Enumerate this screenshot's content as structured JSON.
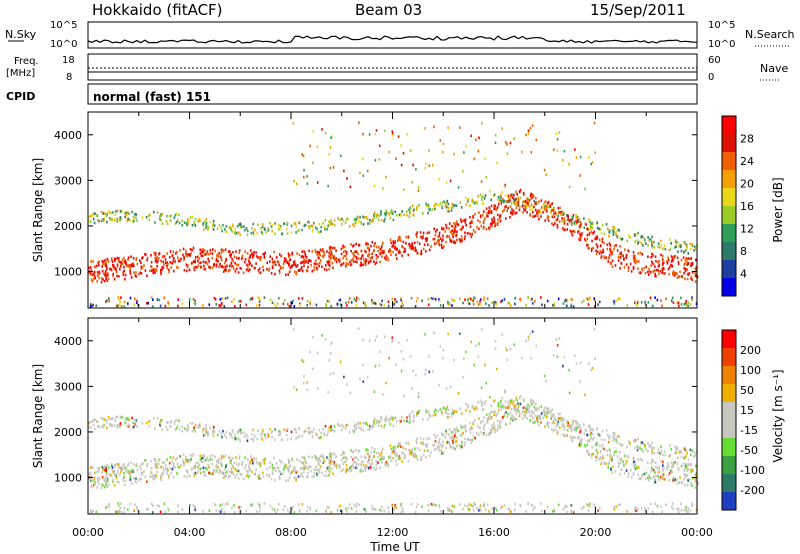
{
  "header": {
    "station": "Hokkaido (fitACF)",
    "beam": "Beam 03",
    "date": "15/Sep/2011"
  },
  "top_panels": {
    "nsky_label": "N.Sky",
    "nsky_ticks": [
      "10^5",
      "10^0"
    ],
    "nsearch_label": "N.Search",
    "nsearch_ticks": [
      "10^5",
      "10^0"
    ],
    "freq_label_1": "Freq.",
    "freq_label_2": "[MHz]",
    "freq_ticks": [
      "18",
      "8"
    ],
    "nave_label": "Nave",
    "nave_ticks": [
      "60",
      "0"
    ],
    "cpid_label": "CPID",
    "cpid_value": "normal (fast) 151"
  },
  "colors": {
    "power_scale": [
      "#0000e6",
      "#1f3fa0",
      "#2e7a6a",
      "#2fa05a",
      "#9ccc28",
      "#e8d818",
      "#f5a000",
      "#f06000",
      "#e01000",
      "#ff0000"
    ],
    "velocity_scale": [
      "#1f3fbf",
      "#2e7a6a",
      "#3aa040",
      "#66dd33",
      "#c8c8c0",
      "#c8c8c0",
      "#f0b000",
      "#f08000",
      "#f04000",
      "#ff0000"
    ]
  },
  "chart_data": [
    {
      "type": "heatmap",
      "title": "Power",
      "ylabel": "Slant Range [km]",
      "xlabel": "Time UT",
      "x_ticks": [
        "00:00",
        "04:00",
        "08:00",
        "12:00",
        "16:00",
        "20:00",
        "00:00"
      ],
      "y_ticks": [
        "1000",
        "2000",
        "3000",
        "4000"
      ],
      "ylim": [
        200,
        4500
      ],
      "xlim_hours": [
        0,
        24
      ],
      "colorbar": {
        "label": "Power [dB]",
        "ticks": [
          "4",
          "8",
          "12",
          "16",
          "20",
          "24",
          "28"
        ],
        "range": [
          0,
          32
        ]
      },
      "scatter_bands": [
        {
          "name": "main echo",
          "hours": [
            0,
            2,
            4,
            6,
            8,
            10,
            12,
            14,
            15.5,
            17,
            19,
            20.5,
            22,
            24
          ],
          "range_km": [
            1000,
            1150,
            1300,
            1250,
            1200,
            1350,
            1500,
            1800,
            2100,
            2600,
            2100,
            1400,
            1200,
            1050
          ],
          "value": 28
        },
        {
          "name": "upper echo",
          "hours": [
            0,
            1,
            2,
            3,
            4,
            5,
            6,
            9,
            11,
            14,
            16,
            18,
            20,
            22,
            24
          ],
          "range_km": [
            2200,
            2250,
            2230,
            2200,
            2150,
            2000,
            1950,
            2000,
            2200,
            2450,
            2700,
            2400,
            2000,
            1700,
            1500
          ],
          "value": 12
        }
      ]
    },
    {
      "type": "heatmap",
      "title": "Velocity",
      "ylabel": "Slant Range [km]",
      "xlabel": "Time UT",
      "x_ticks": [
        "00:00",
        "04:00",
        "08:00",
        "12:00",
        "16:00",
        "20:00",
        "00:00"
      ],
      "y_ticks": [
        "1000",
        "2000",
        "3000",
        "4000"
      ],
      "ylim": [
        200,
        4500
      ],
      "xlim_hours": [
        0,
        24
      ],
      "colorbar": {
        "label": "Velocity [m s-1]",
        "ticks": [
          "200",
          "100",
          "50",
          "15",
          "-15",
          "-50",
          "-100",
          "-200"
        ],
        "range": [
          -250,
          250
        ]
      }
    }
  ],
  "axis": {
    "xlabel": "Time UT",
    "ylabel": "Slant Range [km]",
    "power_label": "Power [dB]",
    "velocity_label": "Velocity [m s⁻¹]"
  }
}
